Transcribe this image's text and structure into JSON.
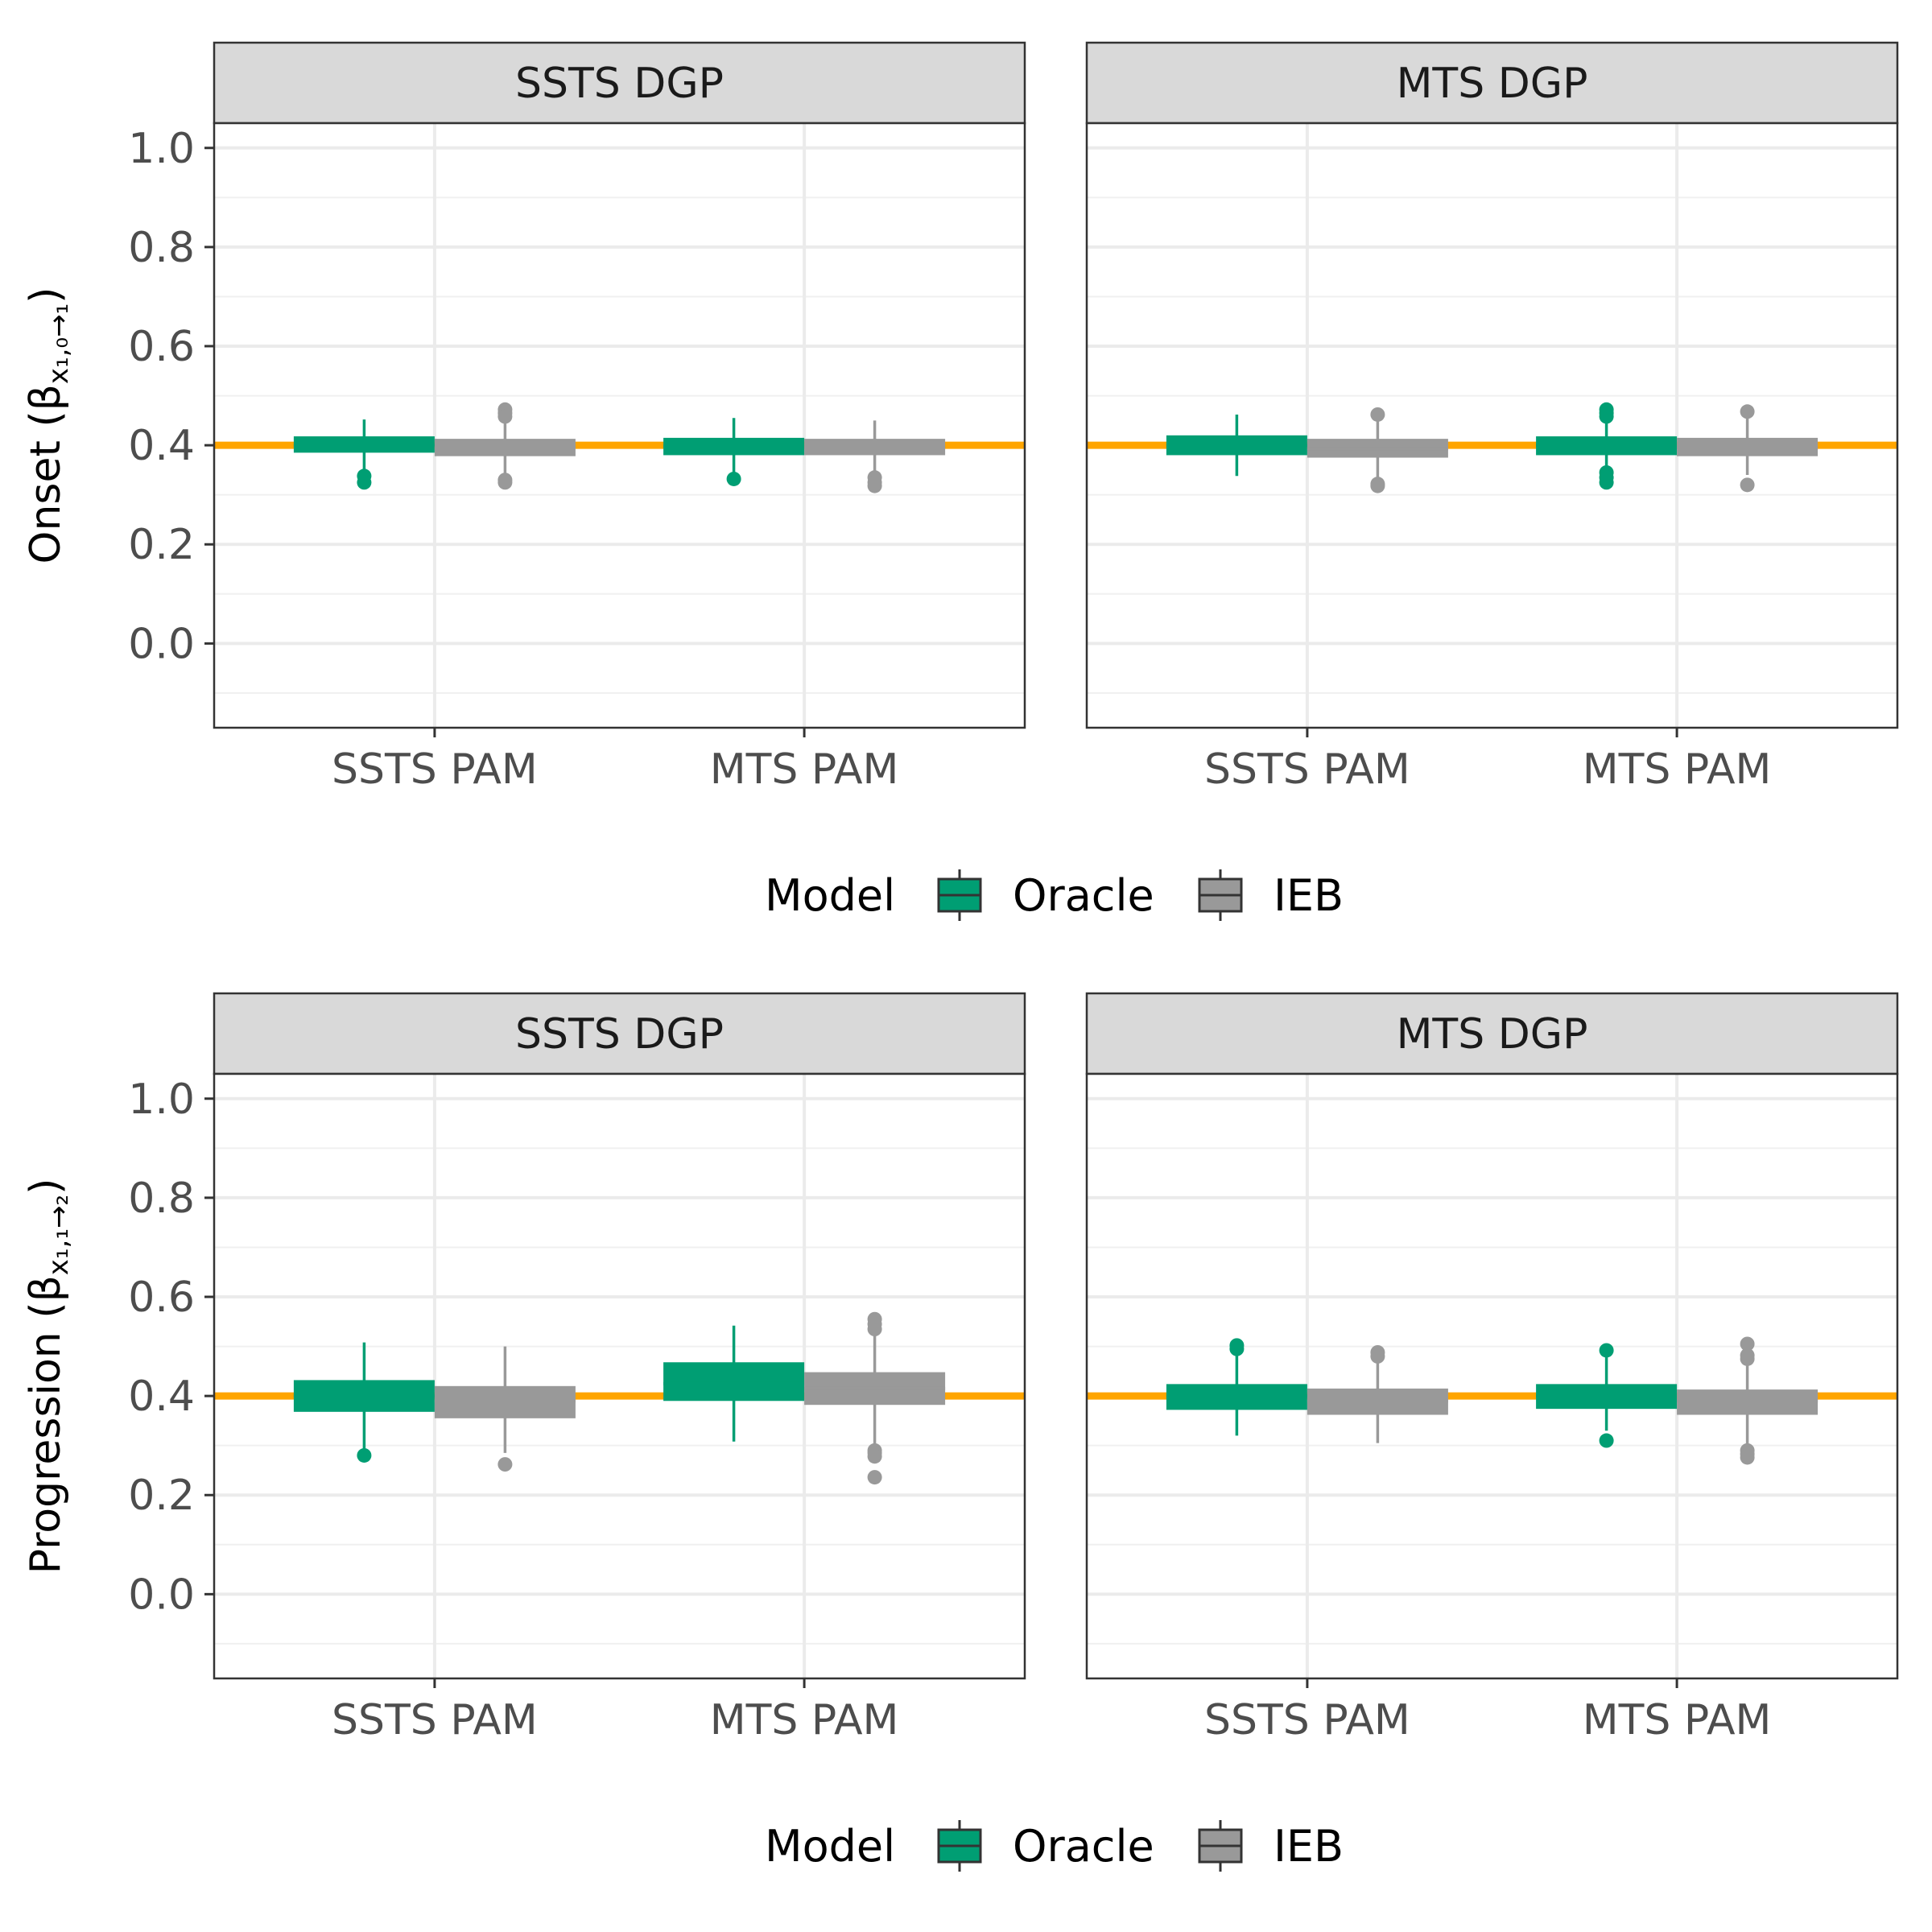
{
  "chart_data": {
    "type": "boxplot",
    "reference_line": {
      "y": 0.4,
      "color": "#FFA500"
    },
    "y_ticks": [
      "0.0",
      "0.2",
      "0.4",
      "0.6",
      "0.8",
      "1.0"
    ],
    "ylim": [
      -0.17,
      1.05
    ],
    "x_categories": [
      "SSTS PAM",
      "MTS PAM"
    ],
    "facets": [
      "SSTS DGP",
      "MTS DGP"
    ],
    "legend": {
      "title": "Model",
      "entries": [
        {
          "name": "Oracle",
          "color": "#009E73"
        },
        {
          "name": "IEB",
          "color": "#999999"
        }
      ]
    },
    "rows": [
      {
        "ylabel_main": "Onset (",
        "ylabel_symbol": "β",
        "ylabel_sub": "x₁,₀→₁",
        "ylabel_close": ")",
        "panels": [
          {
            "facet": "SSTS DGP",
            "boxes": [
              {
                "category": "SSTS PAM",
                "model": "Oracle",
                "lower": 0.34,
                "q1": 0.385,
                "median": 0.4,
                "q3": 0.418,
                "upper": 0.452,
                "outliers": [
                  0.338,
                  0.325
                ]
              },
              {
                "category": "SSTS PAM",
                "model": "IEB",
                "lower": 0.333,
                "q1": 0.378,
                "median": 0.395,
                "q3": 0.413,
                "upper": 0.455,
                "outliers": [
                  0.472,
                  0.465,
                  0.458,
                  0.33,
                  0.325
                ]
              },
              {
                "category": "MTS PAM",
                "model": "Oracle",
                "lower": 0.34,
                "q1": 0.38,
                "median": 0.398,
                "q3": 0.415,
                "upper": 0.455,
                "outliers": [
                  0.332
                ]
              },
              {
                "category": "MTS PAM",
                "model": "IEB",
                "lower": 0.34,
                "q1": 0.38,
                "median": 0.395,
                "q3": 0.413,
                "upper": 0.45,
                "outliers": [
                  0.335,
                  0.325,
                  0.318
                ]
              }
            ]
          },
          {
            "facet": "MTS DGP",
            "boxes": [
              {
                "category": "SSTS PAM",
                "model": "Oracle",
                "lower": 0.338,
                "q1": 0.38,
                "median": 0.4,
                "q3": 0.42,
                "upper": 0.462,
                "outliers": []
              },
              {
                "category": "SSTS PAM",
                "model": "IEB",
                "lower": 0.335,
                "q1": 0.375,
                "median": 0.393,
                "q3": 0.413,
                "upper": 0.455,
                "outliers": [
                  0.462,
                  0.322,
                  0.318
                ]
              },
              {
                "category": "MTS PAM",
                "model": "Oracle",
                "lower": 0.345,
                "q1": 0.38,
                "median": 0.4,
                "q3": 0.418,
                "upper": 0.452,
                "outliers": [
                  0.472,
                  0.465,
                  0.458,
                  0.345,
                  0.335,
                  0.325
                ]
              },
              {
                "category": "MTS PAM",
                "model": "IEB",
                "lower": 0.34,
                "q1": 0.378,
                "median": 0.395,
                "q3": 0.415,
                "upper": 0.455,
                "outliers": [
                  0.468,
                  0.32
                ]
              }
            ]
          }
        ]
      },
      {
        "ylabel_main": "Progression (",
        "ylabel_symbol": "β",
        "ylabel_sub": "x₁,₁→₂",
        "ylabel_close": ")",
        "panels": [
          {
            "facet": "SSTS DGP",
            "boxes": [
              {
                "category": "SSTS PAM",
                "model": "Oracle",
                "lower": 0.29,
                "q1": 0.368,
                "median": 0.4,
                "q3": 0.432,
                "upper": 0.508,
                "outliers": [
                  0.28
                ]
              },
              {
                "category": "SSTS PAM",
                "model": "IEB",
                "lower": 0.285,
                "q1": 0.355,
                "median": 0.39,
                "q3": 0.42,
                "upper": 0.5,
                "outliers": [
                  0.262
                ]
              },
              {
                "category": "MTS PAM",
                "model": "Oracle",
                "lower": 0.308,
                "q1": 0.39,
                "median": 0.425,
                "q3": 0.468,
                "upper": 0.542,
                "outliers": []
              },
              {
                "category": "MTS PAM",
                "model": "IEB",
                "lower": 0.3,
                "q1": 0.382,
                "median": 0.415,
                "q3": 0.448,
                "upper": 0.53,
                "outliers": [
                  0.555,
                  0.545,
                  0.535,
                  0.29,
                  0.285,
                  0.278,
                  0.236
                ]
              }
            ]
          },
          {
            "facet": "MTS DGP",
            "boxes": [
              {
                "category": "SSTS PAM",
                "model": "Oracle",
                "lower": 0.32,
                "q1": 0.372,
                "median": 0.4,
                "q3": 0.424,
                "upper": 0.49,
                "outliers": [
                  0.502,
                  0.495
                ]
              },
              {
                "category": "SSTS PAM",
                "model": "IEB",
                "lower": 0.305,
                "q1": 0.362,
                "median": 0.39,
                "q3": 0.415,
                "upper": 0.475,
                "outliers": [
                  0.488,
                  0.48
                ]
              },
              {
                "category": "MTS PAM",
                "model": "Oracle",
                "lower": 0.33,
                "q1": 0.374,
                "median": 0.4,
                "q3": 0.424,
                "upper": 0.48,
                "outliers": [
                  0.492,
                  0.31
                ]
              },
              {
                "category": "MTS PAM",
                "model": "IEB",
                "lower": 0.3,
                "q1": 0.362,
                "median": 0.39,
                "q3": 0.413,
                "upper": 0.495,
                "outliers": [
                  0.505,
                  0.482,
                  0.475,
                  0.29,
                  0.283,
                  0.276
                ]
              }
            ]
          }
        ]
      }
    ]
  }
}
